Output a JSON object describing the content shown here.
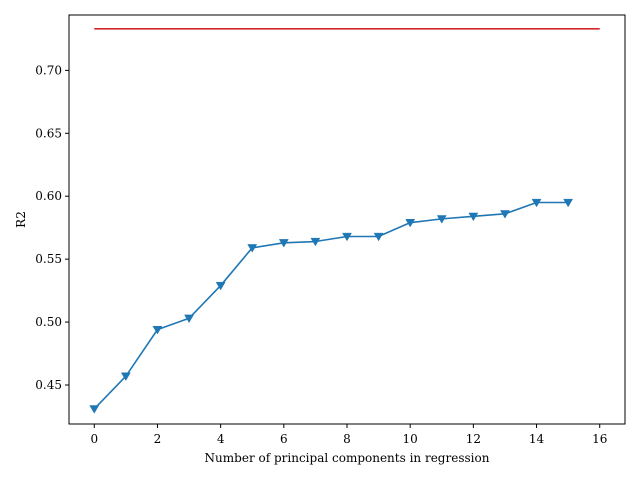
{
  "chart_data": {
    "type": "line",
    "title": "",
    "xlabel": "Number of principal components in regression",
    "ylabel": "R2",
    "xlim": [
      -0.8,
      16.8
    ],
    "ylim": [
      0.419,
      0.744
    ],
    "xticks": [
      0,
      2,
      4,
      6,
      8,
      10,
      12,
      14,
      16
    ],
    "xtick_labels": [
      "0",
      "2",
      "4",
      "6",
      "8",
      "10",
      "12",
      "14",
      "16"
    ],
    "yticks": [
      0.45,
      0.5,
      0.55,
      0.6,
      0.65,
      0.7
    ],
    "ytick_labels": [
      "0.45",
      "0.50",
      "0.55",
      "0.60",
      "0.65",
      "0.70"
    ],
    "grid": false,
    "legend": null,
    "series": [
      {
        "kind": "line-with-markers",
        "marker": "triangle-down",
        "color": "#1f77b4",
        "x": [
          0,
          1,
          2,
          3,
          4,
          5,
          6,
          7,
          8,
          9,
          10,
          11,
          12,
          13,
          14,
          15
        ],
        "y": [
          0.431,
          0.457,
          0.494,
          0.503,
          0.529,
          0.559,
          0.563,
          0.564,
          0.568,
          0.568,
          0.579,
          0.582,
          0.584,
          0.586,
          0.595,
          0.595
        ]
      },
      {
        "kind": "hline",
        "color": "#d62728",
        "x": [
          0,
          16
        ],
        "y": [
          0.733,
          0.733
        ]
      }
    ]
  }
}
